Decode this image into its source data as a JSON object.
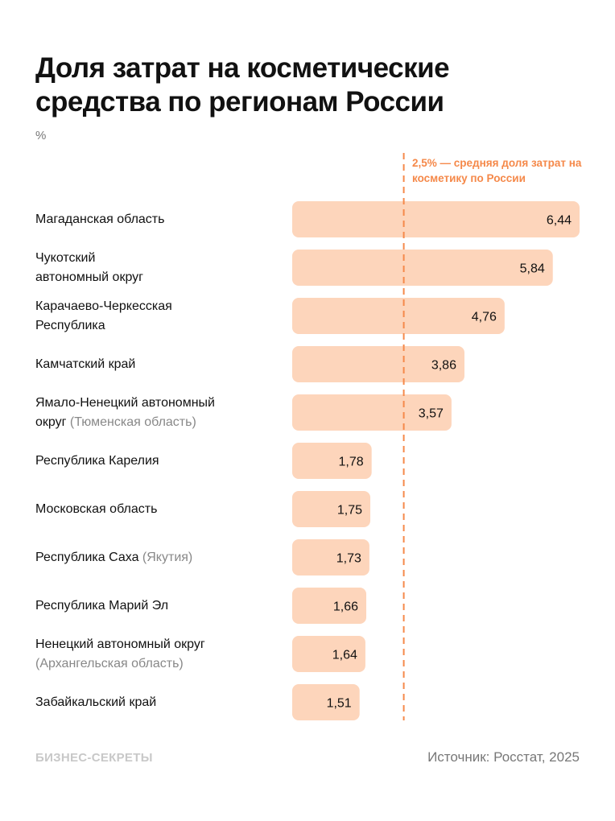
{
  "title": "Доля затрат на косметические средства по регионам России",
  "unit": "%",
  "annotation": "2,5% — средняя доля затрат на косметику по России",
  "source": "Источник: Росстат, 2025",
  "logo": "БИЗНЕС-СЕКРЕТЫ",
  "colors": {
    "bar": "#FDD5BB",
    "reference_line": "#F5894A",
    "annotation": "#F5894A"
  },
  "chart_data": {
    "type": "bar",
    "orientation": "horizontal",
    "categories": [
      {
        "name": "Магаданская область",
        "note": ""
      },
      {
        "name": "Чукотский автономный округ",
        "note": ""
      },
      {
        "name": "Карачаево-Черкесская Республика",
        "note": ""
      },
      {
        "name": "Камчатский край",
        "note": ""
      },
      {
        "name": "Ямало-Ненецкий автономный округ",
        "note": "(Тюменская область)"
      },
      {
        "name": "Республика Карелия",
        "note": ""
      },
      {
        "name": "Московская область",
        "note": ""
      },
      {
        "name": "Республика Саха",
        "note": "(Якутия)"
      },
      {
        "name": "Республика Марий Эл",
        "note": ""
      },
      {
        "name": "Ненецкий автономный округ",
        "note": "(Архангельская область)"
      },
      {
        "name": "Забайкальский край",
        "note": ""
      }
    ],
    "values": [
      6.44,
      5.84,
      4.76,
      3.86,
      3.57,
      1.78,
      1.75,
      1.73,
      1.66,
      1.64,
      1.51
    ],
    "value_labels": [
      "6,44",
      "5,84",
      "4,76",
      "3,86",
      "3,57",
      "1,78",
      "1,75",
      "1,73",
      "1,66",
      "1,64",
      "1,51"
    ],
    "reference_line": {
      "value": 2.5,
      "label": "2,5% — средняя доля затрат на косметику по России"
    },
    "xlim": [
      0,
      6.44
    ],
    "grid": false,
    "legend": "none"
  }
}
